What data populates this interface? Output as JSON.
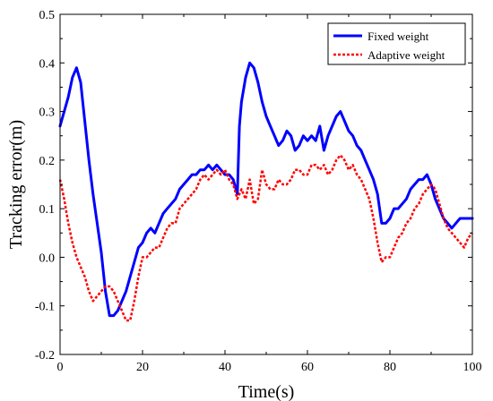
{
  "chart_data": {
    "type": "line",
    "title": "",
    "xlabel": "Time(s)",
    "ylabel": "Tracking error(m)",
    "xlim": [
      0,
      100
    ],
    "ylim": [
      -0.2,
      0.5
    ],
    "x_ticks": [
      0,
      20,
      40,
      60,
      80,
      100
    ],
    "y_ticks": [
      -0.2,
      -0.1,
      0.0,
      0.1,
      0.2,
      0.3,
      0.4,
      0.5
    ],
    "x_tick_labels": [
      "0",
      "20",
      "40",
      "60",
      "80",
      "100"
    ],
    "y_tick_labels": [
      "-0.2",
      "-0.1",
      "0.0",
      "0.1",
      "0.2",
      "0.3",
      "0.4",
      "0.5"
    ],
    "grid": false,
    "legend_position": "top-right",
    "series": [
      {
        "name": "Fixed weight",
        "color": "#0000ff",
        "style": "solid",
        "x": [
          0,
          1,
          2,
          3,
          4,
          5,
          6,
          7,
          8,
          9,
          10,
          11,
          12,
          13,
          14,
          15,
          16,
          17,
          18,
          19,
          20,
          21,
          22,
          23,
          24,
          25,
          26,
          27,
          28,
          29,
          30,
          31,
          32,
          33,
          34,
          35,
          36,
          37,
          38,
          39,
          40,
          41,
          42,
          43,
          43.5,
          44,
          45,
          46,
          47,
          48,
          49,
          50,
          51,
          52,
          53,
          54,
          55,
          56,
          57,
          58,
          59,
          60,
          61,
          62,
          63,
          64,
          65,
          66,
          67,
          68,
          69,
          70,
          71,
          72,
          73,
          74,
          75,
          76,
          77,
          78,
          79,
          80,
          81,
          82,
          83,
          84,
          85,
          86,
          87,
          88,
          89,
          90,
          91,
          92,
          93,
          94,
          95,
          96,
          97,
          98,
          99,
          100
        ],
        "y": [
          0.27,
          0.3,
          0.33,
          0.37,
          0.39,
          0.36,
          0.28,
          0.2,
          0.13,
          0.07,
          0.01,
          -0.07,
          -0.12,
          -0.12,
          -0.11,
          -0.09,
          -0.07,
          -0.04,
          -0.01,
          0.02,
          0.03,
          0.05,
          0.06,
          0.05,
          0.07,
          0.09,
          0.1,
          0.11,
          0.12,
          0.14,
          0.15,
          0.16,
          0.17,
          0.17,
          0.18,
          0.18,
          0.19,
          0.18,
          0.19,
          0.18,
          0.17,
          0.17,
          0.16,
          0.13,
          0.27,
          0.32,
          0.37,
          0.4,
          0.39,
          0.36,
          0.32,
          0.29,
          0.27,
          0.25,
          0.23,
          0.24,
          0.26,
          0.25,
          0.22,
          0.23,
          0.25,
          0.24,
          0.25,
          0.24,
          0.27,
          0.22,
          0.25,
          0.27,
          0.29,
          0.3,
          0.28,
          0.26,
          0.25,
          0.23,
          0.22,
          0.2,
          0.18,
          0.16,
          0.13,
          0.07,
          0.07,
          0.08,
          0.1,
          0.1,
          0.11,
          0.12,
          0.14,
          0.15,
          0.16,
          0.16,
          0.17,
          0.15,
          0.12,
          0.1,
          0.08,
          0.07,
          0.06,
          0.07,
          0.08,
          0.08,
          0.08,
          0.08
        ]
      },
      {
        "name": "Adaptive weight",
        "color": "#ff0000",
        "style": "dotted",
        "x": [
          0,
          1,
          2,
          3,
          4,
          5,
          6,
          7,
          8,
          9,
          10,
          11,
          12,
          13,
          14,
          15,
          16,
          17,
          18,
          19,
          20,
          21,
          22,
          23,
          24,
          25,
          26,
          27,
          28,
          29,
          30,
          31,
          32,
          33,
          34,
          35,
          36,
          37,
          38,
          39,
          40,
          41,
          42,
          43,
          44,
          45,
          46,
          47,
          48,
          49,
          50,
          51,
          52,
          53,
          54,
          55,
          56,
          57,
          58,
          59,
          60,
          61,
          62,
          63,
          64,
          65,
          66,
          67,
          68,
          69,
          70,
          71,
          72,
          73,
          74,
          75,
          76,
          77,
          78,
          79,
          80,
          81,
          82,
          83,
          84,
          85,
          86,
          87,
          88,
          89,
          90,
          91,
          92,
          93,
          94,
          95,
          96,
          97,
          98,
          99,
          100
        ],
        "y": [
          0.16,
          0.12,
          0.07,
          0.03,
          0.0,
          -0.02,
          -0.04,
          -0.07,
          -0.09,
          -0.08,
          -0.07,
          -0.06,
          -0.06,
          -0.07,
          -0.09,
          -0.11,
          -0.13,
          -0.13,
          -0.09,
          -0.04,
          0.0,
          0.0,
          0.01,
          0.02,
          0.02,
          0.04,
          0.06,
          0.07,
          0.07,
          0.1,
          0.11,
          0.12,
          0.13,
          0.14,
          0.16,
          0.17,
          0.16,
          0.17,
          0.18,
          0.17,
          0.18,
          0.16,
          0.15,
          0.12,
          0.14,
          0.12,
          0.16,
          0.11,
          0.12,
          0.18,
          0.15,
          0.14,
          0.14,
          0.16,
          0.15,
          0.15,
          0.16,
          0.18,
          0.18,
          0.17,
          0.17,
          0.19,
          0.19,
          0.18,
          0.19,
          0.17,
          0.18,
          0.2,
          0.21,
          0.2,
          0.18,
          0.19,
          0.17,
          0.16,
          0.14,
          0.12,
          0.08,
          0.03,
          -0.01,
          0.0,
          0.0,
          0.02,
          0.04,
          0.05,
          0.07,
          0.08,
          0.1,
          0.11,
          0.13,
          0.14,
          0.15,
          0.14,
          0.11,
          0.08,
          0.06,
          0.05,
          0.04,
          0.03,
          0.02,
          0.04,
          0.05
        ]
      }
    ]
  }
}
